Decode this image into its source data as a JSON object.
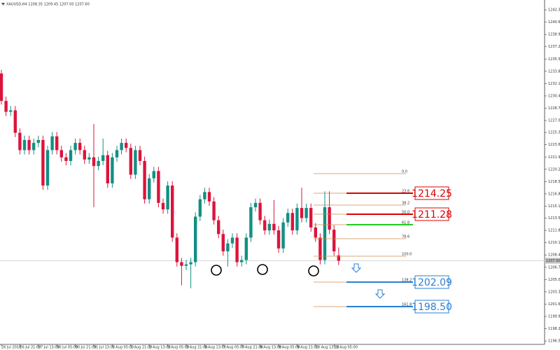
{
  "chart_data": {
    "type": "candlestick",
    "title": "XAUUSD,H4 1208.35 1209.45 1207.00 1207.60",
    "categories": [
      "26 Jul 2018",
      null,
      null,
      null,
      "26 Jul 21:00",
      null,
      null,
      null,
      "27 Jul 13:00",
      null,
      null,
      null,
      "30 Jul 05:00",
      null,
      null,
      null,
      "30 Jul 21:00",
      null,
      null,
      null,
      "31 Jul 13:00",
      null,
      null,
      null,
      "1 Aug 05:00",
      null,
      null,
      null,
      "1 Aug 21:00",
      null,
      null,
      null,
      "2 Aug 13:00",
      null,
      null,
      null,
      "3 Aug 05:00",
      null,
      null,
      null,
      "3 Aug 21:00",
      null,
      null,
      null,
      "6 Aug 13:00",
      null,
      null,
      null,
      "7 Aug 05:00",
      null,
      null,
      null,
      "7 Aug 21:00",
      null,
      null,
      null,
      "8 Aug 13:00",
      null,
      null,
      null,
      "9 Aug 05:00",
      null,
      null,
      null,
      "9 Aug 21:00",
      null,
      null,
      null,
      "10 Aug 13:00",
      null,
      null,
      null,
      "13 Aug 05:00",
      null
    ],
    "open": [
      1233.5,
      1229.7,
      1228.2,
      1228.4,
      1225.3,
      1222.9,
      1224.3,
      1222.9,
      1223.9,
      1224.3,
      1218.0,
      1222.9,
      1224.8,
      1222.9,
      1221.9,
      1221.4,
      1222.9,
      1223.9,
      1222.9,
      1221.6,
      1221.9,
      1220.7,
      1221.4,
      1222.2,
      1218.3,
      1221.9,
      1222.9,
      1223.9,
      1223.2,
      1219.5,
      1222.9,
      1221.4,
      1216.1,
      1219.0,
      1220.0,
      1215.6,
      1214.7,
      1218.0,
      1210.8,
      1207.4,
      1206.9,
      1207.1,
      1207.4,
      1213.7,
      1216.1,
      1217.1,
      1215.8,
      1213.2,
      1211.3,
      1208.9,
      1210.0,
      1210.8,
      1207.4,
      1207.7,
      1210.8,
      1215.0,
      1215.6,
      1213.2,
      1211.8,
      1212.7,
      1211.8,
      1209.3,
      1212.9,
      1214.2,
      1211.8,
      1214.9,
      1213.5,
      1214.9,
      1212.2,
      1210.8,
      1207.7,
      1215.0,
      1211.9,
      1208.35
    ],
    "high": [
      1234.0,
      1230.3,
      1229.0,
      1229.0,
      1225.9,
      1224.9,
      1224.9,
      1224.5,
      1224.9,
      1224.9,
      1223.5,
      1225.4,
      1225.4,
      1223.5,
      1222.5,
      1223.5,
      1224.5,
      1224.5,
      1223.5,
      1222.5,
      1226.5,
      1222.0,
      1224.5,
      1222.8,
      1222.5,
      1223.5,
      1224.5,
      1224.5,
      1223.8,
      1223.5,
      1223.5,
      1222.0,
      1219.6,
      1220.6,
      1220.6,
      1216.2,
      1218.6,
      1218.6,
      1211.4,
      1208.0,
      1207.7,
      1208.0,
      1214.3,
      1216.7,
      1217.7,
      1217.7,
      1216.4,
      1213.8,
      1211.9,
      1210.6,
      1211.4,
      1211.4,
      1208.3,
      1211.4,
      1215.6,
      1216.2,
      1216.2,
      1213.8,
      1213.3,
      1216.0,
      1212.4,
      1213.5,
      1214.8,
      1214.8,
      1215.5,
      1217.7,
      1215.5,
      1215.5,
      1212.8,
      1211.4,
      1217.2,
      1217.2,
      1212.5,
      1209.45
    ],
    "low": [
      1229.2,
      1227.6,
      1227.6,
      1224.7,
      1222.3,
      1222.3,
      1222.3,
      1222.3,
      1223.3,
      1217.4,
      1217.4,
      1222.3,
      1222.3,
      1221.3,
      1220.8,
      1220.8,
      1222.3,
      1222.3,
      1221.0,
      1221.0,
      1215.0,
      1220.1,
      1220.8,
      1217.7,
      1217.7,
      1221.3,
      1222.3,
      1222.6,
      1218.9,
      1218.9,
      1220.8,
      1215.5,
      1215.5,
      1218.4,
      1215.0,
      1214.1,
      1214.1,
      1210.2,
      1206.8,
      1204.2,
      1206.3,
      1203.8,
      1206.8,
      1213.1,
      1215.5,
      1215.2,
      1212.6,
      1210.7,
      1208.3,
      1206.8,
      1209.4,
      1206.8,
      1206.8,
      1207.1,
      1210.2,
      1214.4,
      1212.6,
      1211.2,
      1211.2,
      1211.2,
      1208.7,
      1208.7,
      1212.3,
      1211.2,
      1211.2,
      1212.9,
      1212.9,
      1211.6,
      1210.2,
      1207.1,
      1207.1,
      1211.3,
      1208.3,
      1207.0
    ],
    "close": [
      1229.7,
      1228.2,
      1228.4,
      1225.3,
      1222.9,
      1224.3,
      1222.9,
      1223.9,
      1224.3,
      1218.0,
      1222.9,
      1224.8,
      1222.9,
      1221.9,
      1221.4,
      1222.9,
      1223.9,
      1222.9,
      1221.6,
      1221.9,
      1220.7,
      1221.4,
      1222.2,
      1218.3,
      1221.9,
      1222.9,
      1223.9,
      1223.2,
      1219.5,
      1222.9,
      1221.4,
      1216.1,
      1219.0,
      1220.0,
      1215.6,
      1214.7,
      1218.0,
      1210.8,
      1207.4,
      1206.9,
      1207.1,
      1207.4,
      1213.7,
      1216.1,
      1217.1,
      1215.8,
      1213.2,
      1211.3,
      1208.9,
      1210.0,
      1210.8,
      1207.4,
      1207.7,
      1210.8,
      1215.0,
      1215.6,
      1213.2,
      1211.8,
      1212.7,
      1211.8,
      1209.3,
      1212.9,
      1214.2,
      1211.8,
      1214.9,
      1213.5,
      1214.9,
      1212.2,
      1210.8,
      1207.7,
      1215.0,
      1211.9,
      1208.9,
      1207.6
    ],
    "up_color": "#138f84",
    "down_color": "#dc143c",
    "ylim": [
      1196.03,
      1243.66
    ],
    "yticks": [
      {
        "value": 1242.3,
        "label": "1242.30"
      },
      {
        "value": 1240.6,
        "label": "1240.60"
      },
      {
        "value": 1238.9,
        "label": "1238.90"
      },
      {
        "value": 1237.2,
        "label": "1237.20"
      },
      {
        "value": 1235.5,
        "label": "1235.50"
      },
      {
        "value": 1233.8,
        "label": "1233.80"
      },
      {
        "value": 1232.1,
        "label": "1232.10"
      },
      {
        "value": 1230.4,
        "label": "1230.40"
      },
      {
        "value": 1228.7,
        "label": "1228.70"
      },
      {
        "value": 1227.0,
        "label": "1227.00"
      },
      {
        "value": 1225.35,
        "label": "1225.35"
      },
      {
        "value": 1223.65,
        "label": "1223.65"
      },
      {
        "value": 1221.95,
        "label": "1221.95"
      },
      {
        "value": 1220.25,
        "label": "1220.25"
      },
      {
        "value": 1218.55,
        "label": "1218.55"
      },
      {
        "value": 1216.85,
        "label": "1216.85"
      },
      {
        "value": 1215.15,
        "label": "1215.15"
      },
      {
        "value": 1213.5,
        "label": "1213.50"
      },
      {
        "value": 1211.8,
        "label": "1211.80"
      },
      {
        "value": 1210.1,
        "label": "1210.10"
      },
      {
        "value": 1208.4,
        "label": "1208.40"
      },
      {
        "value": 1206.7,
        "label": "1206.70"
      },
      {
        "value": 1205.0,
        "label": "1205.00"
      },
      {
        "value": 1203.3,
        "label": "1203.30"
      },
      {
        "value": 1201.6,
        "label": "1201.60"
      },
      {
        "value": 1199.9,
        "label": "1199.90"
      },
      {
        "value": 1198.2,
        "label": "1198.20"
      },
      {
        "value": 1196.5,
        "label": "1196.50"
      }
    ],
    "current_price": {
      "value": 1207.6,
      "label": "1207.60"
    },
    "fib_levels": [
      "0.0",
      "23.6",
      "38.2",
      "50.0",
      "61.8",
      "78.6",
      "100.0",
      "138.2",
      "161.8"
    ],
    "target_labels": [
      "1214.25",
      "1211.28",
      "1202.09",
      "1198.50"
    ]
  }
}
